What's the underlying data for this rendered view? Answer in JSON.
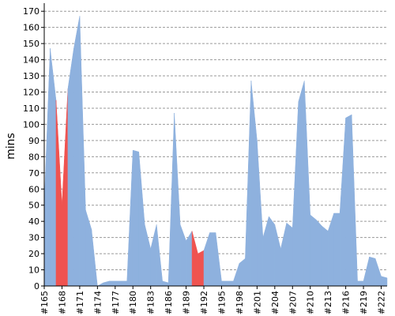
{
  "chart_data": {
    "type": "area",
    "ylabel": "mins",
    "ylim": [
      0,
      175
    ],
    "yticks": [
      0,
      10,
      20,
      30,
      40,
      50,
      60,
      70,
      80,
      90,
      100,
      110,
      120,
      130,
      140,
      150,
      160,
      170
    ],
    "grid": "horizontal dashed",
    "x": [
      "#165",
      "#166",
      "#167",
      "#168",
      "#169",
      "#170",
      "#171",
      "#172",
      "#173",
      "#174",
      "#175",
      "#176",
      "#177",
      "#178",
      "#179",
      "#180",
      "#181",
      "#182",
      "#183",
      "#184",
      "#185",
      "#186",
      "#187",
      "#188",
      "#189",
      "#190",
      "#191",
      "#192",
      "#193",
      "#194",
      "#195",
      "#196",
      "#197",
      "#198",
      "#199",
      "#200",
      "#201",
      "#202",
      "#203",
      "#204",
      "#205",
      "#206",
      "#207",
      "#208",
      "#209",
      "#210",
      "#211",
      "#212",
      "#213",
      "#214",
      "#215",
      "#216",
      "#217",
      "#218",
      "#219",
      "#220",
      "#221",
      "#222",
      "#223"
    ],
    "xtick_labels": [
      "#165",
      "#168",
      "#171",
      "#174",
      "#177",
      "#180",
      "#183",
      "#186",
      "#189",
      "#192",
      "#195",
      "#198",
      "#201",
      "#204",
      "#207",
      "#210",
      "#213",
      "#216",
      "#219",
      "#222"
    ],
    "values": [
      50,
      147,
      115,
      50,
      122,
      147,
      167,
      47,
      35,
      0,
      2,
      3,
      3,
      3,
      3,
      84,
      83,
      38,
      23,
      38,
      3,
      2,
      107,
      38,
      28,
      34,
      20,
      22,
      33,
      33,
      3,
      3,
      3,
      14,
      17,
      127,
      90,
      30,
      43,
      38,
      23,
      39,
      36,
      114,
      127,
      44,
      41,
      37,
      34,
      45,
      45,
      104,
      106,
      3,
      3,
      18,
      17,
      6,
      5
    ],
    "status": [
      "success",
      "success",
      "success",
      "failure",
      "success",
      "success",
      "success",
      "success",
      "success",
      "success",
      "success",
      "success",
      "success",
      "success",
      "success",
      "success",
      "success",
      "success",
      "success",
      "success",
      "success",
      "success",
      "success",
      "success",
      "success",
      "success",
      "failure",
      "success",
      "success",
      "success",
      "success",
      "success",
      "success",
      "success",
      "success",
      "success",
      "success",
      "success",
      "success",
      "success",
      "success",
      "success",
      "success",
      "success",
      "success",
      "success",
      "success",
      "success",
      "success",
      "success",
      "success",
      "success",
      "success",
      "success",
      "success",
      "success",
      "success",
      "success",
      "success"
    ],
    "colors": {
      "success": "#8eb1de",
      "failure": "#ef5350",
      "aborted": "#cfcfcf"
    }
  }
}
